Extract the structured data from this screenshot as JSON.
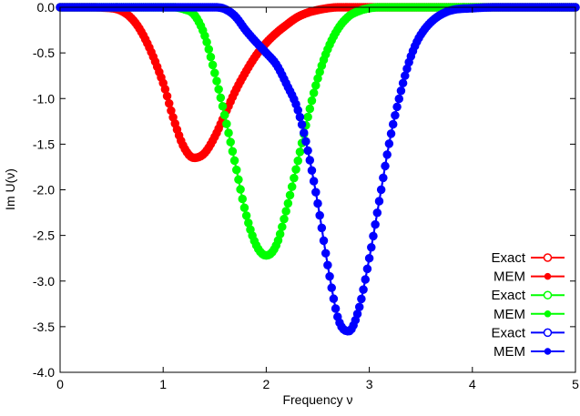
{
  "chart_data": {
    "type": "line",
    "xlabel": "Frequency ν",
    "ylabel": "Im U(ν)",
    "xlim": [
      0,
      5
    ],
    "ylim": [
      -4.0,
      0.0
    ],
    "xticks": [
      "0",
      "1",
      "2",
      "3",
      "4",
      "5"
    ],
    "yticks": [
      "0.0",
      "-0.5",
      "-1.0",
      "-1.5",
      "-2.0",
      "-2.5",
      "-3.0",
      "-3.5",
      "-4.0"
    ],
    "grid": false,
    "legend_position": "bottom-right",
    "x_samples": [
      0.0,
      0.25,
      0.5,
      0.75,
      1.0,
      1.1,
      1.2,
      1.3,
      1.4,
      1.5,
      1.6,
      1.7,
      1.8,
      1.9,
      2.0,
      2.1,
      2.2,
      2.3,
      2.4,
      2.5,
      2.6,
      2.7,
      2.8,
      2.9,
      3.0,
      3.1,
      3.2,
      3.3,
      3.4,
      3.5,
      3.75,
      4.0,
      4.25,
      4.5,
      4.75,
      5.0
    ],
    "series": [
      {
        "name": "Exact",
        "group": 0,
        "marker": "open-circle",
        "color": "#ff0000",
        "values": [
          0.0,
          0.0,
          -0.01,
          -0.2,
          -0.83,
          -1.22,
          -1.53,
          -1.65,
          -1.6,
          -1.42,
          -1.17,
          -0.92,
          -0.71,
          -0.53,
          -0.39,
          -0.28,
          -0.19,
          -0.11,
          -0.06,
          -0.03,
          -0.01,
          0.0,
          0.0,
          0.0,
          0.0,
          0.0,
          0.0,
          0.0,
          0.0,
          0.0,
          0.0,
          0.0,
          0.0,
          0.0,
          0.0,
          0.0
        ]
      },
      {
        "name": "MEM",
        "group": 0,
        "marker": "filled-circle",
        "color": "#ff0000",
        "values": [
          0.0,
          0.0,
          -0.01,
          -0.2,
          -0.83,
          -1.22,
          -1.53,
          -1.65,
          -1.6,
          -1.42,
          -1.17,
          -0.92,
          -0.71,
          -0.53,
          -0.39,
          -0.28,
          -0.19,
          -0.11,
          -0.06,
          -0.03,
          -0.01,
          0.0,
          0.0,
          0.0,
          0.0,
          0.0,
          0.0,
          0.0,
          0.0,
          0.0,
          0.0,
          0.0,
          0.0,
          0.0,
          0.0,
          0.0
        ]
      },
      {
        "name": "Exact",
        "group": 1,
        "marker": "open-circle",
        "color": "#00ff00",
        "values": [
          0.0,
          0.0,
          0.0,
          0.0,
          0.0,
          0.0,
          -0.02,
          -0.08,
          -0.3,
          -0.72,
          -1.2,
          -1.72,
          -2.25,
          -2.6,
          -2.72,
          -2.6,
          -2.2,
          -1.72,
          -1.22,
          -0.78,
          -0.45,
          -0.23,
          -0.1,
          -0.04,
          -0.01,
          0.0,
          0.0,
          0.0,
          0.0,
          0.0,
          0.0,
          0.0,
          0.0,
          0.0,
          0.0,
          0.0
        ]
      },
      {
        "name": "MEM",
        "group": 1,
        "marker": "filled-circle",
        "color": "#00ff00",
        "values": [
          0.0,
          0.0,
          0.0,
          0.0,
          0.0,
          0.0,
          -0.02,
          -0.08,
          -0.3,
          -0.72,
          -1.2,
          -1.72,
          -2.25,
          -2.6,
          -2.72,
          -2.6,
          -2.2,
          -1.72,
          -1.22,
          -0.78,
          -0.45,
          -0.23,
          -0.1,
          -0.04,
          -0.01,
          0.0,
          0.0,
          0.0,
          0.0,
          0.0,
          0.0,
          0.0,
          0.0,
          0.0,
          0.0,
          0.0
        ]
      },
      {
        "name": "Exact",
        "group": 2,
        "marker": "open-circle",
        "color": "#0000ff",
        "values": [
          0.0,
          0.0,
          0.0,
          0.0,
          0.0,
          0.0,
          0.0,
          0.0,
          0.0,
          0.0,
          -0.02,
          -0.1,
          -0.25,
          -0.38,
          -0.5,
          -0.63,
          -0.85,
          -1.1,
          -1.55,
          -2.15,
          -2.85,
          -3.42,
          -3.55,
          -3.3,
          -2.75,
          -2.1,
          -1.45,
          -0.95,
          -0.55,
          -0.3,
          -0.05,
          -0.01,
          0.0,
          0.0,
          0.0,
          0.0
        ]
      },
      {
        "name": "MEM",
        "group": 2,
        "marker": "filled-circle",
        "color": "#0000ff",
        "values": [
          0.0,
          0.0,
          0.0,
          0.0,
          0.0,
          0.0,
          0.0,
          0.0,
          0.0,
          0.0,
          -0.02,
          -0.1,
          -0.25,
          -0.38,
          -0.5,
          -0.63,
          -0.85,
          -1.1,
          -1.55,
          -2.15,
          -2.85,
          -3.42,
          -3.55,
          -3.3,
          -2.75,
          -2.1,
          -1.45,
          -0.95,
          -0.55,
          -0.3,
          -0.05,
          -0.01,
          0.0,
          0.0,
          0.0,
          0.0
        ]
      }
    ]
  }
}
